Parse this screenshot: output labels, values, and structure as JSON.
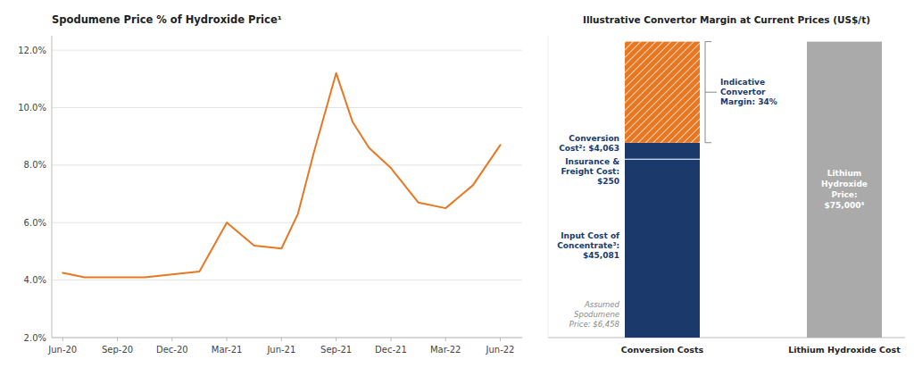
{
  "chart_data": [
    {
      "type": "line",
      "title": "Spodumene Price % of Hydroxide Price¹",
      "x": [
        0,
        0.4,
        1.0,
        1.5,
        2.0,
        2.5,
        3.0,
        3.5,
        4.0,
        4.3,
        4.6,
        5.0,
        5.3,
        5.6,
        6.0,
        6.5,
        7.0,
        7.5,
        8.0
      ],
      "values": [
        0.0425,
        0.041,
        0.041,
        0.041,
        0.042,
        0.043,
        0.06,
        0.052,
        0.051,
        0.063,
        0.085,
        0.112,
        0.095,
        0.086,
        0.079,
        0.067,
        0.065,
        0.073,
        0.087
      ],
      "color": "#E87722",
      "xlim": [
        -0.2,
        8.4
      ],
      "xticks": [
        {
          "value": 0,
          "label": "Jun-20"
        },
        {
          "value": 1,
          "label": "Sep-20"
        },
        {
          "value": 2,
          "label": "Dec-20"
        },
        {
          "value": 3,
          "label": "Mar-21"
        },
        {
          "value": 4,
          "label": "Jun-21"
        },
        {
          "value": 5,
          "label": "Sep-21"
        },
        {
          "value": 6,
          "label": "Dec-21"
        },
        {
          "value": 7,
          "label": "Mar-22"
        },
        {
          "value": 8,
          "label": "Jun-22"
        }
      ],
      "ylim": [
        0.02,
        0.125
      ],
      "yticks": [
        {
          "value": 0.02,
          "label": "2.0%"
        },
        {
          "value": 0.04,
          "label": "4.0%"
        },
        {
          "value": 0.06,
          "label": "6.0%"
        },
        {
          "value": 0.08,
          "label": "8.0%"
        },
        {
          "value": 0.1,
          "label": "10.0%"
        },
        {
          "value": 0.12,
          "label": "12.0%"
        }
      ],
      "grid": true
    },
    {
      "type": "bar",
      "stacked": true,
      "title": "Illustrative Convertor Margin at Current Prices (US$/t)",
      "categories": [
        "Conversion Costs",
        "Lithium Hydroxide Cost"
      ],
      "series": [
        {
          "color": "#1B3A6B",
          "values": [
            45081,
            null
          ]
        },
        {
          "color": "#ADD8E6",
          "values": [
            250,
            null
          ]
        },
        {
          "color": "#1B3A6B",
          "values": [
            4063,
            null
          ]
        },
        {
          "color": "#E87722",
          "values": [
            25606,
            null
          ]
        },
        {
          "color": "#AAAAAA",
          "values": [
            null,
            75000
          ]
        }
      ],
      "ylim": [
        0,
        76500
      ],
      "tick_labels": "x",
      "annotations": [
        "Conversion\nCost²: $4,063",
        "Insurance &\nFreight Cost:\n$250",
        "Input Cost of\nConcentrate³:\n$45,081",
        "Assumed\nSpodumene\nPrice: $6,458",
        "Indicative\nConvertor\nMargin: 34%",
        "Lithium\nHydroxide\nPrice:\n$75,000⁴"
      ]
    }
  ]
}
